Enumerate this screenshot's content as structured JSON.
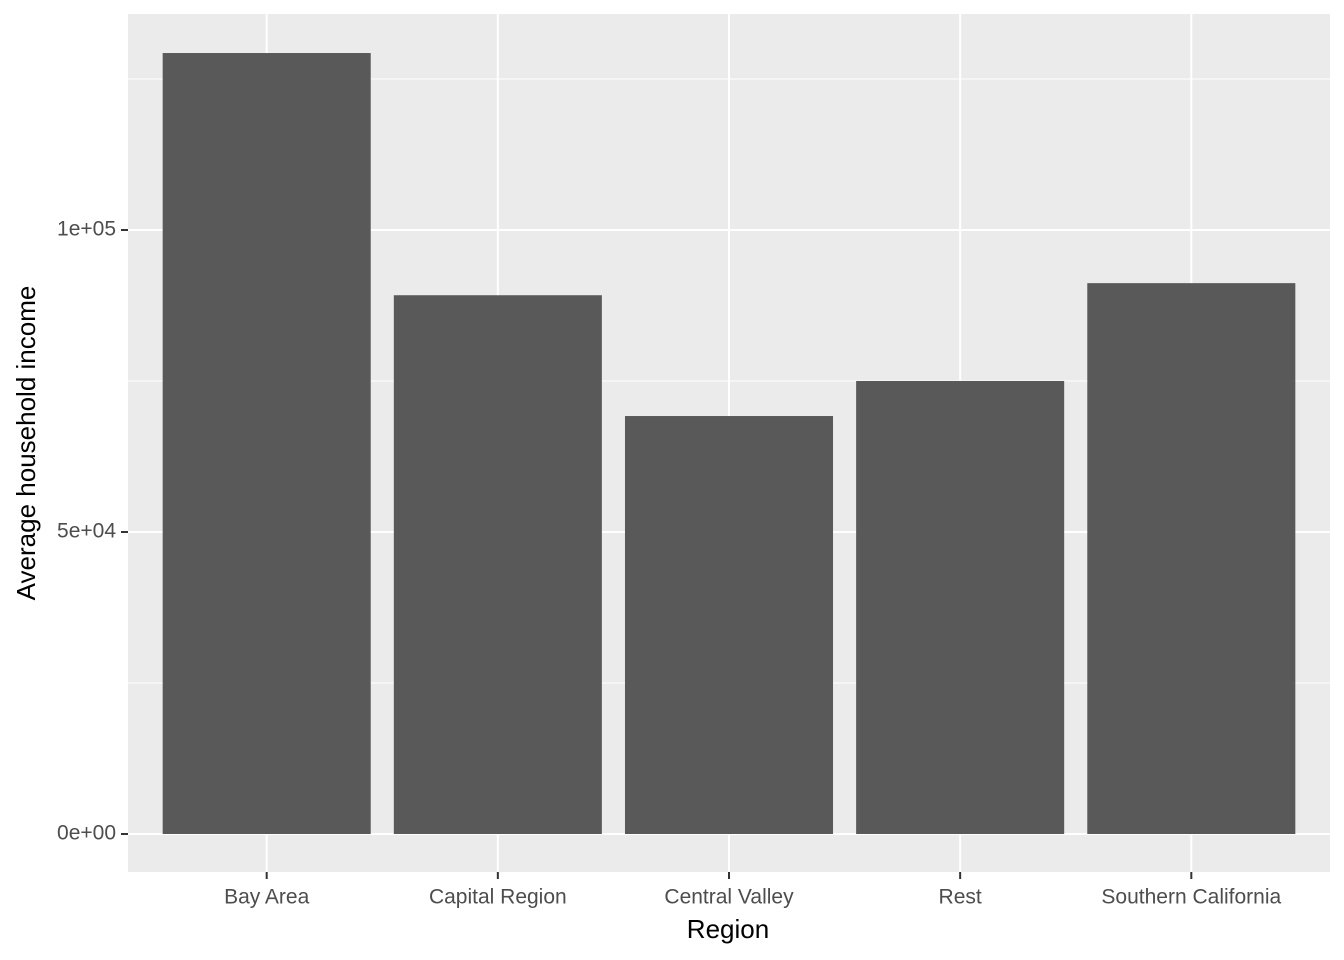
{
  "chart_data": {
    "type": "bar",
    "x_label": "Region",
    "y_label": "Average household income",
    "categories": [
      "Bay Area",
      "Capital Region",
      "Central Valley",
      "Rest",
      "Southern California"
    ],
    "values": [
      129300,
      89200,
      69200,
      75000,
      91200
    ],
    "color": "#595959",
    "ylim": [
      -6290,
      135760
    ],
    "yticks": [
      {
        "value": 0,
        "label": "0e+00"
      },
      {
        "value": 50000,
        "label": "5e+04"
      },
      {
        "value": 100000,
        "label": "1e+05"
      }
    ],
    "minor_yticks": [
      25000,
      75000,
      125000
    ],
    "grid": true
  }
}
